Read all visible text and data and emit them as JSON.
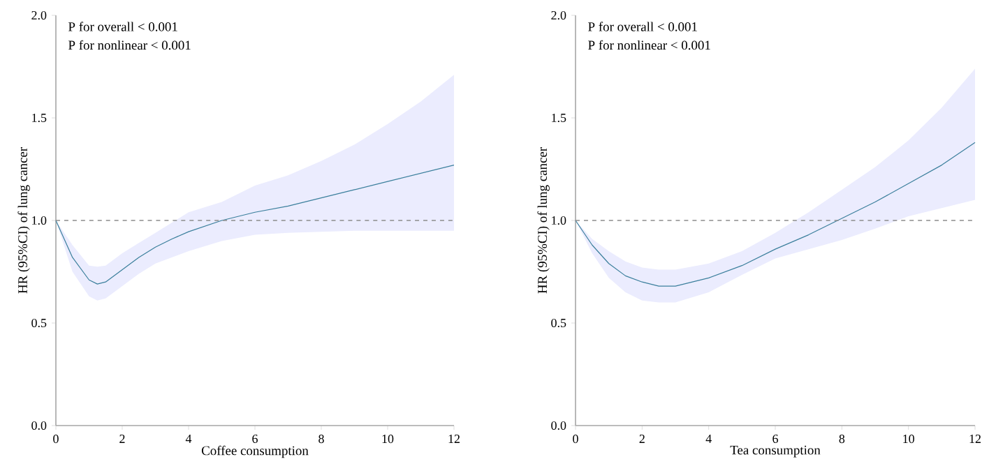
{
  "chart_data": [
    {
      "type": "line",
      "xlabel": "Coffee consumption",
      "ylabel": "HR (95%CI) of lung cancer",
      "annotations": [
        "P for overall < 0.001",
        "P for nonlinear < 0.001"
      ],
      "x": [
        0,
        0.5,
        1,
        1.25,
        1.5,
        2,
        2.5,
        3,
        3.5,
        4,
        5,
        6,
        7,
        8,
        9,
        10,
        11,
        12
      ],
      "series": [
        {
          "color": "#3b7f9c",
          "values": [
            1.0,
            0.82,
            0.71,
            0.69,
            0.7,
            0.76,
            0.82,
            0.87,
            0.91,
            0.945,
            1.0,
            1.04,
            1.07,
            1.11,
            1.15,
            1.19,
            1.23,
            1.27
          ],
          "lower": [
            1.0,
            0.75,
            0.63,
            0.61,
            0.62,
            0.68,
            0.74,
            0.79,
            0.82,
            0.85,
            0.9,
            0.93,
            0.94,
            0.945,
            0.95,
            0.95,
            0.95,
            0.95
          ],
          "upper": [
            1.0,
            0.88,
            0.78,
            0.775,
            0.78,
            0.84,
            0.89,
            0.94,
            0.99,
            1.04,
            1.09,
            1.17,
            1.22,
            1.29,
            1.37,
            1.47,
            1.58,
            1.71
          ]
        }
      ],
      "ref_lines": [
        {
          "axis": "y",
          "value": 1,
          "color": "#8c8c8c",
          "line_style": "dashed"
        }
      ],
      "xlim": [
        0,
        12
      ],
      "ylim": [
        0,
        2
      ],
      "xticks": [
        0,
        2,
        4,
        6,
        8,
        10,
        12
      ],
      "yticks": [
        {
          "value": 0,
          "label": "0.0"
        },
        {
          "value": 0.5,
          "label": "0.5"
        },
        {
          "value": 1,
          "label": "1.0"
        },
        {
          "value": 1.5,
          "label": "1.5"
        },
        {
          "value": 2,
          "label": "2.0"
        }
      ]
    },
    {
      "type": "line",
      "xlabel": "Tea consumption",
      "ylabel": "HR (95%CI) of lung cancer",
      "annotations": [
        "P for overall < 0.001",
        "P for nonlinear < 0.001"
      ],
      "x": [
        0,
        0.5,
        1,
        1.5,
        2,
        2.5,
        3,
        4,
        5,
        6,
        7,
        8,
        9,
        10,
        11,
        12
      ],
      "series": [
        {
          "color": "#3b7f9c",
          "values": [
            1.0,
            0.88,
            0.79,
            0.73,
            0.7,
            0.68,
            0.68,
            0.72,
            0.78,
            0.86,
            0.93,
            1.01,
            1.09,
            1.18,
            1.27,
            1.38
          ],
          "lower": [
            1.0,
            0.84,
            0.72,
            0.65,
            0.61,
            0.6,
            0.6,
            0.65,
            0.735,
            0.815,
            0.86,
            0.905,
            0.96,
            1.02,
            1.06,
            1.1
          ],
          "upper": [
            1.0,
            0.91,
            0.85,
            0.8,
            0.77,
            0.76,
            0.76,
            0.79,
            0.85,
            0.94,
            1.04,
            1.15,
            1.26,
            1.39,
            1.55,
            1.74
          ]
        }
      ],
      "ref_lines": [
        {
          "axis": "y",
          "value": 1,
          "color": "#8c8c8c",
          "line_style": "dashed"
        }
      ],
      "xlim": [
        0,
        12
      ],
      "ylim": [
        0,
        2
      ],
      "xticks": [
        0,
        2,
        4,
        6,
        8,
        10,
        12
      ],
      "yticks": [
        {
          "value": 0,
          "label": "0.0"
        },
        {
          "value": 0.5,
          "label": "0.5"
        },
        {
          "value": 1,
          "label": "1.0"
        },
        {
          "value": 1.5,
          "label": "1.5"
        },
        {
          "value": 2,
          "label": "2.0"
        }
      ]
    }
  ]
}
